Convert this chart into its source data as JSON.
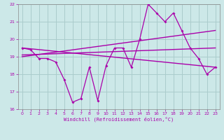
{
  "xlabel": "Windchill (Refroidissement éolien,°C)",
  "xlim": [
    -0.5,
    23.5
  ],
  "ylim": [
    16,
    22
  ],
  "yticks": [
    16,
    17,
    18,
    19,
    20,
    21,
    22
  ],
  "xticks": [
    0,
    1,
    2,
    3,
    4,
    5,
    6,
    7,
    8,
    9,
    10,
    11,
    12,
    13,
    14,
    15,
    16,
    17,
    18,
    19,
    20,
    21,
    22,
    23
  ],
  "bg_color": "#cce8e8",
  "grid_color": "#aacccc",
  "line_color": "#aa00aa",
  "series1_x": [
    0,
    1,
    2,
    3,
    4,
    5,
    6,
    7,
    8,
    9,
    10,
    11,
    12,
    13,
    14,
    15,
    16,
    17,
    18,
    19,
    20,
    21,
    22,
    23
  ],
  "series1_y": [
    19.5,
    19.4,
    18.9,
    18.9,
    18.7,
    17.7,
    16.4,
    16.6,
    18.4,
    16.5,
    18.5,
    19.5,
    19.5,
    18.4,
    20.0,
    22.0,
    21.5,
    21.0,
    21.5,
    20.5,
    19.5,
    18.9,
    18.0,
    18.4
  ],
  "trend1_x": [
    0,
    23
  ],
  "trend1_y": [
    19.5,
    18.4
  ],
  "trend2_x": [
    0,
    23
  ],
  "trend2_y": [
    19.1,
    19.5
  ],
  "trend3_x": [
    0,
    23
  ],
  "trend3_y": [
    19.0,
    20.5
  ]
}
